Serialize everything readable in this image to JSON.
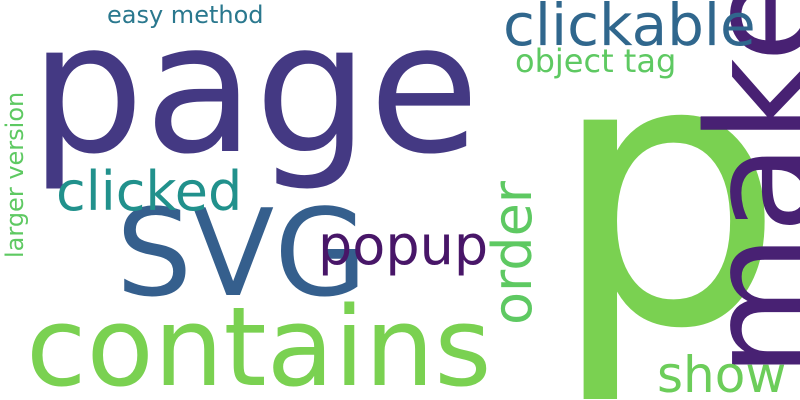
{
  "words": {
    "page": {
      "text": "page",
      "color": "#443983"
    },
    "p": {
      "text": "p",
      "color": "#7ad151"
    },
    "make": {
      "text": "make",
      "color": "#482173"
    },
    "contains": {
      "text": "contains",
      "color": "#7ad151"
    },
    "svg": {
      "text": "SVG",
      "color": "#355f8d"
    },
    "clickable": {
      "text": "clickable",
      "color": "#30678d"
    },
    "clicked": {
      "text": "clicked",
      "color": "#21918c"
    },
    "popup": {
      "text": "popup",
      "color": "#481668"
    },
    "order": {
      "text": "order",
      "color": "#5ec962"
    },
    "show": {
      "text": "show",
      "color": "#6ccd5a"
    },
    "object_tag": {
      "text": "object tag",
      "color": "#5ec962"
    },
    "easy_method": {
      "text": "easy method",
      "color": "#2a788e"
    },
    "larger_version": {
      "text": "larger version",
      "color": "#5ec962"
    }
  }
}
